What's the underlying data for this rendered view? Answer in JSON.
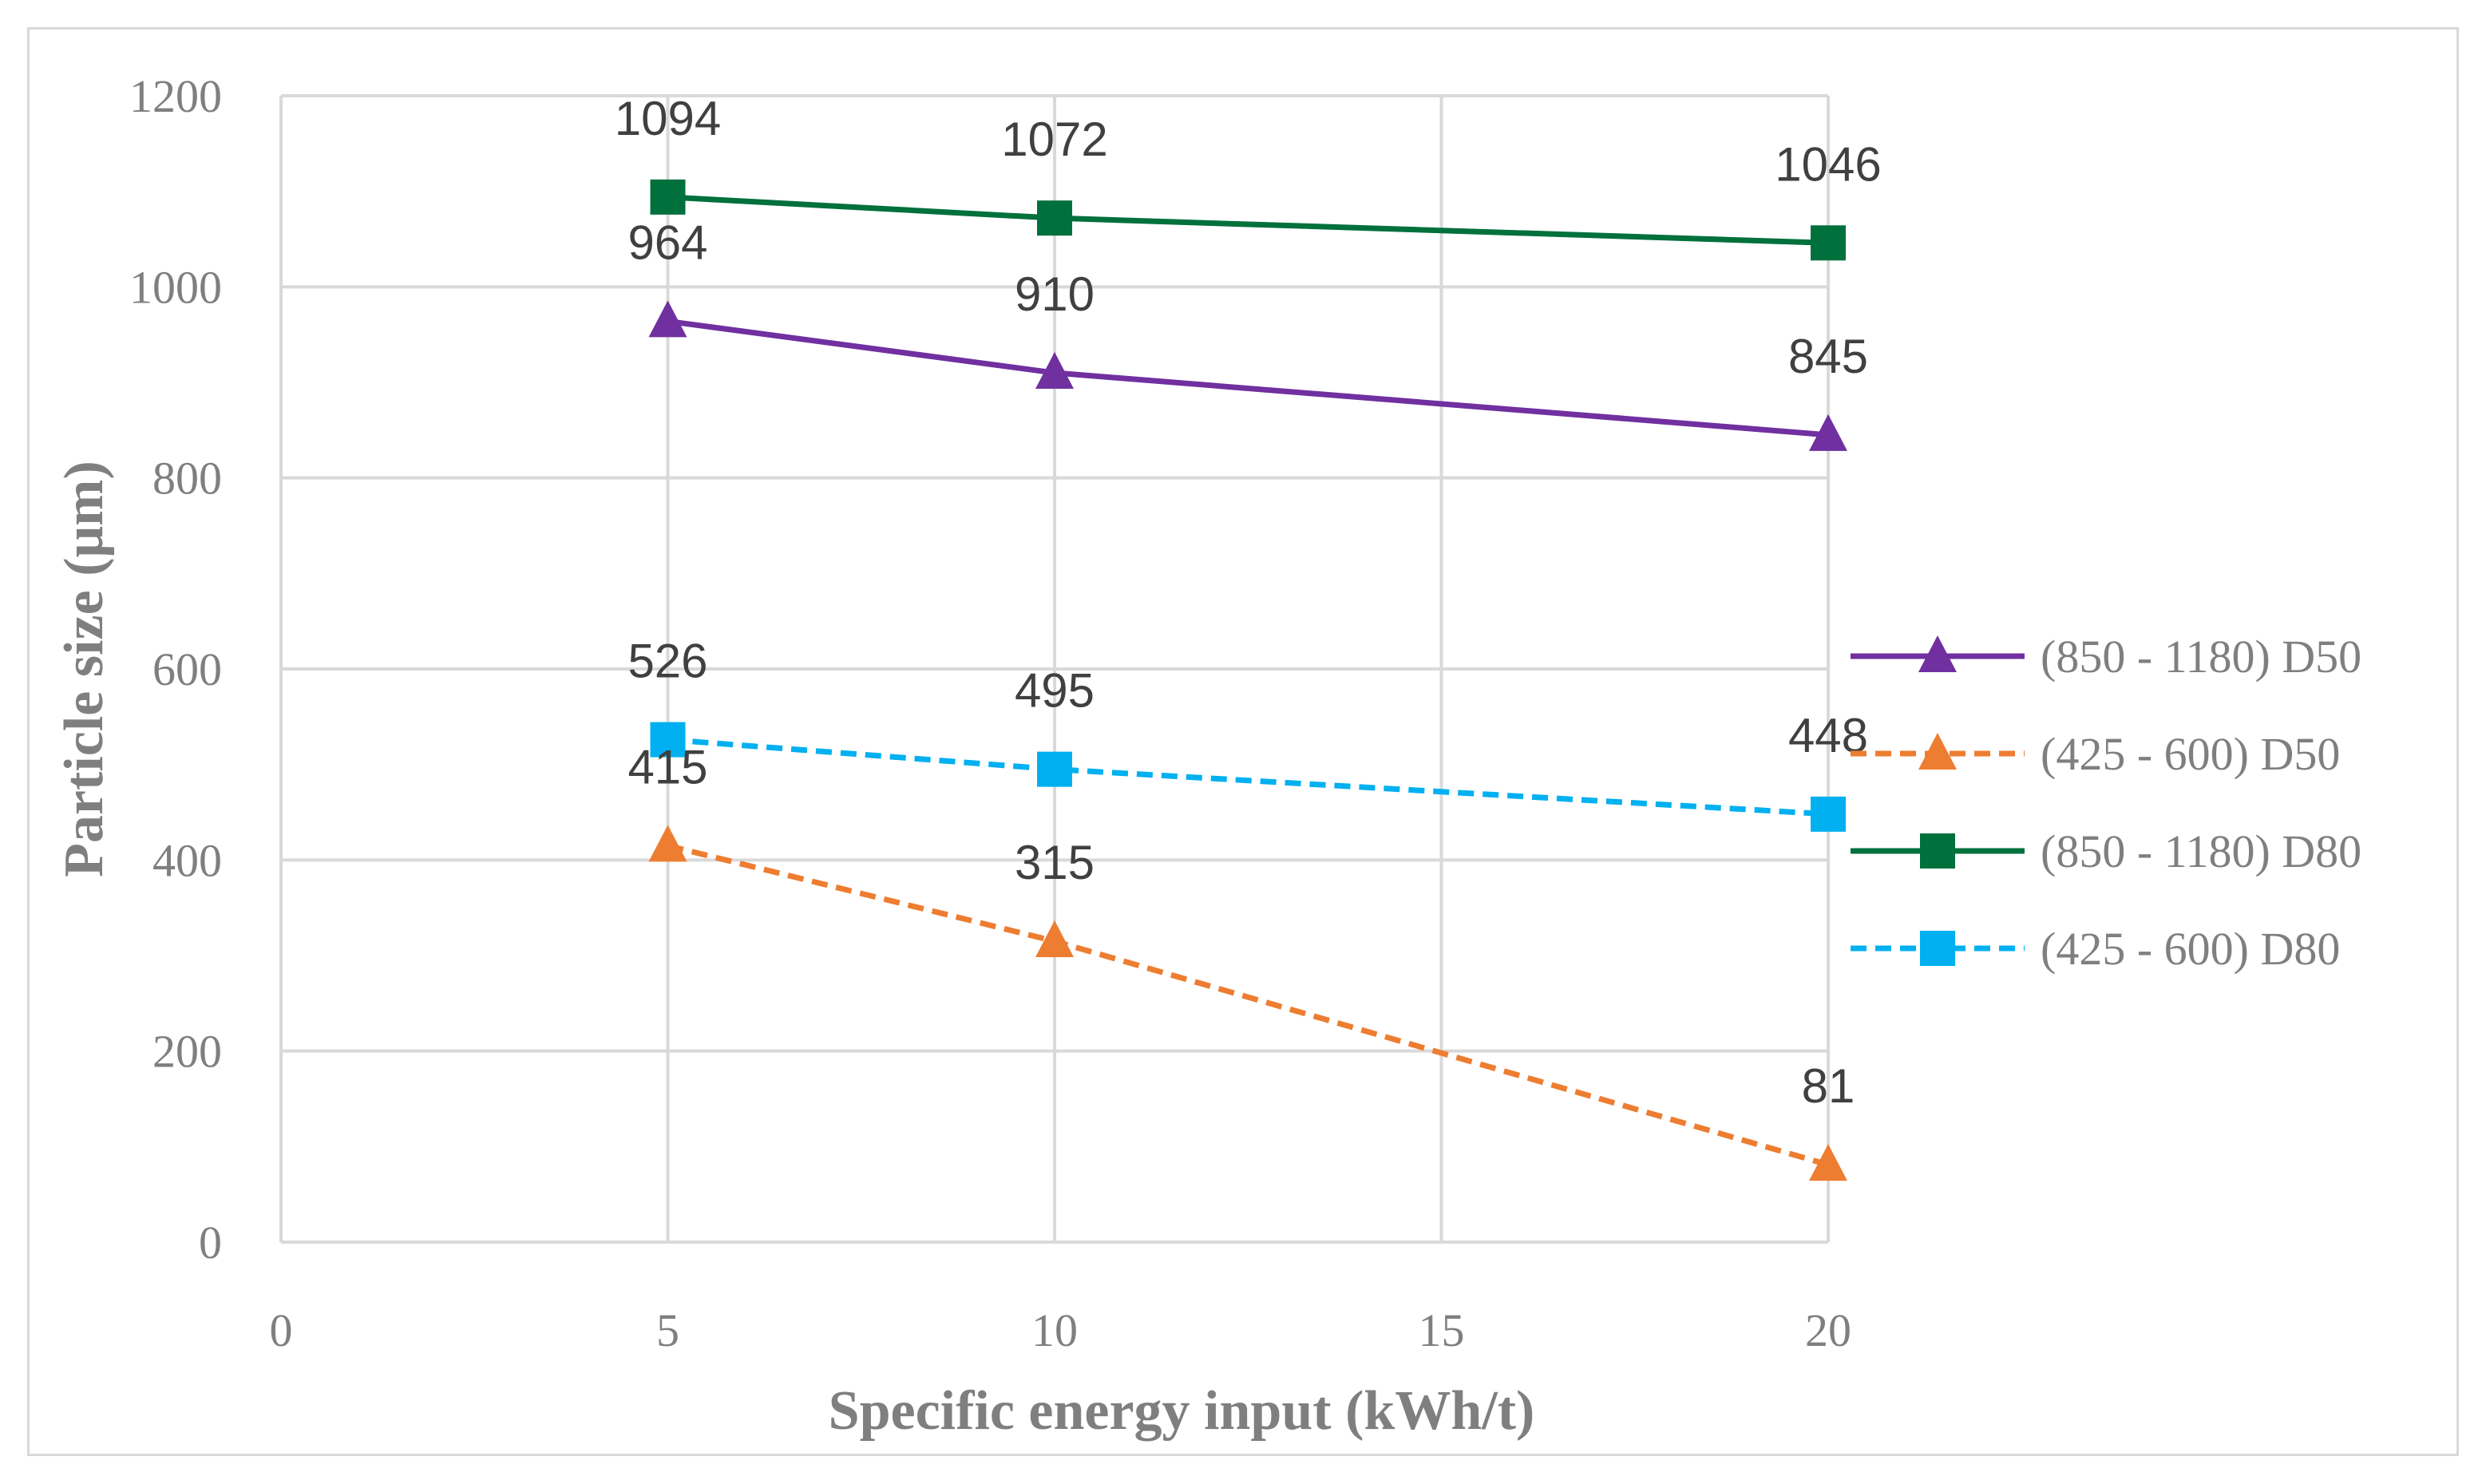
{
  "chart_data": {
    "type": "line",
    "title": "",
    "xlabel": "Specific energy input (kWh/t)",
    "ylabel": "Particle size (μm)",
    "xlim": [
      0,
      20
    ],
    "ylim": [
      0,
      1200
    ],
    "xticks": [
      0,
      5,
      10,
      15,
      20
    ],
    "yticks": [
      0,
      200,
      400,
      600,
      800,
      1000,
      1200
    ],
    "grid": true,
    "legend_position": "right",
    "x": [
      5,
      10,
      20
    ],
    "series": [
      {
        "name": "(850 - 1180) D50",
        "values": [
          964,
          910,
          845
        ],
        "color": "#7030a0",
        "dashed": false,
        "marker": "triangle"
      },
      {
        "name": "(425 - 600) D50",
        "values": [
          415,
          315,
          81
        ],
        "color": "#ed7d31",
        "dashed": true,
        "marker": "triangle"
      },
      {
        "name": "(850 - 1180) D80",
        "values": [
          1094,
          1072,
          1046
        ],
        "color": "#00703c",
        "dashed": false,
        "marker": "square"
      },
      {
        "name": "(425 - 600) D80",
        "values": [
          526,
          495,
          448
        ],
        "color": "#00b0f0",
        "dashed": true,
        "marker": "square"
      }
    ]
  }
}
